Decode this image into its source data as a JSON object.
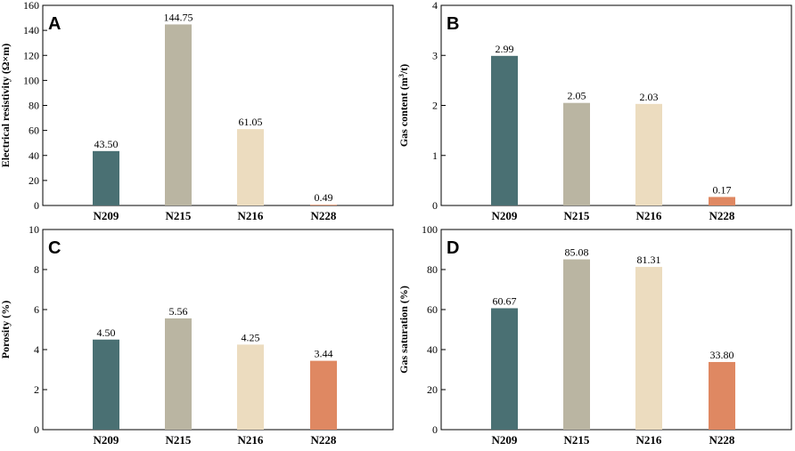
{
  "chart_data": [
    {
      "type": "bar",
      "panel": "A",
      "categories": [
        "N209",
        "N215",
        "N216",
        "N228"
      ],
      "values": [
        43.5,
        144.75,
        61.05,
        0.49
      ],
      "value_labels": [
        "43.50",
        "144.75",
        "61.05",
        "0.49"
      ],
      "ylabel": "Electrical resistivity (Ω×m)",
      "ylim": [
        0,
        160
      ],
      "yticks": [
        0,
        20,
        40,
        60,
        80,
        100,
        120,
        140,
        160
      ],
      "colors": [
        "#4a7073",
        "#bab5a2",
        "#ecdcbf",
        "#df8862"
      ]
    },
    {
      "type": "bar",
      "panel": "B",
      "categories": [
        "N209",
        "N215",
        "N216",
        "N228"
      ],
      "values": [
        2.99,
        2.05,
        2.03,
        0.17
      ],
      "value_labels": [
        "2.99",
        "2.05",
        "2.03",
        "0.17"
      ],
      "ylabel": "Gas content (m³/t)",
      "ylim": [
        0,
        4
      ],
      "yticks": [
        0,
        1,
        2,
        3,
        4
      ],
      "colors": [
        "#4a7073",
        "#bab5a2",
        "#ecdcbf",
        "#df8862"
      ]
    },
    {
      "type": "bar",
      "panel": "C",
      "categories": [
        "N209",
        "N215",
        "N216",
        "N228"
      ],
      "values": [
        4.5,
        5.56,
        4.25,
        3.44
      ],
      "value_labels": [
        "4.50",
        "5.56",
        "4.25",
        "3.44"
      ],
      "ylabel": "Porosity (%)",
      "ylim": [
        0,
        10
      ],
      "yticks": [
        0,
        2,
        4,
        6,
        8,
        10
      ],
      "colors": [
        "#4a7073",
        "#bab5a2",
        "#ecdcbf",
        "#df8862"
      ]
    },
    {
      "type": "bar",
      "panel": "D",
      "categories": [
        "N209",
        "N215",
        "N216",
        "N228"
      ],
      "values": [
        60.67,
        85.08,
        81.31,
        33.8
      ],
      "value_labels": [
        "60.67",
        "85.08",
        "81.31",
        "33.80"
      ],
      "ylabel": "Gas saturation (%)",
      "ylim": [
        0,
        100
      ],
      "yticks": [
        0,
        20,
        40,
        60,
        80,
        100
      ],
      "colors": [
        "#4a7073",
        "#bab5a2",
        "#ecdcbf",
        "#df8862"
      ]
    }
  ]
}
